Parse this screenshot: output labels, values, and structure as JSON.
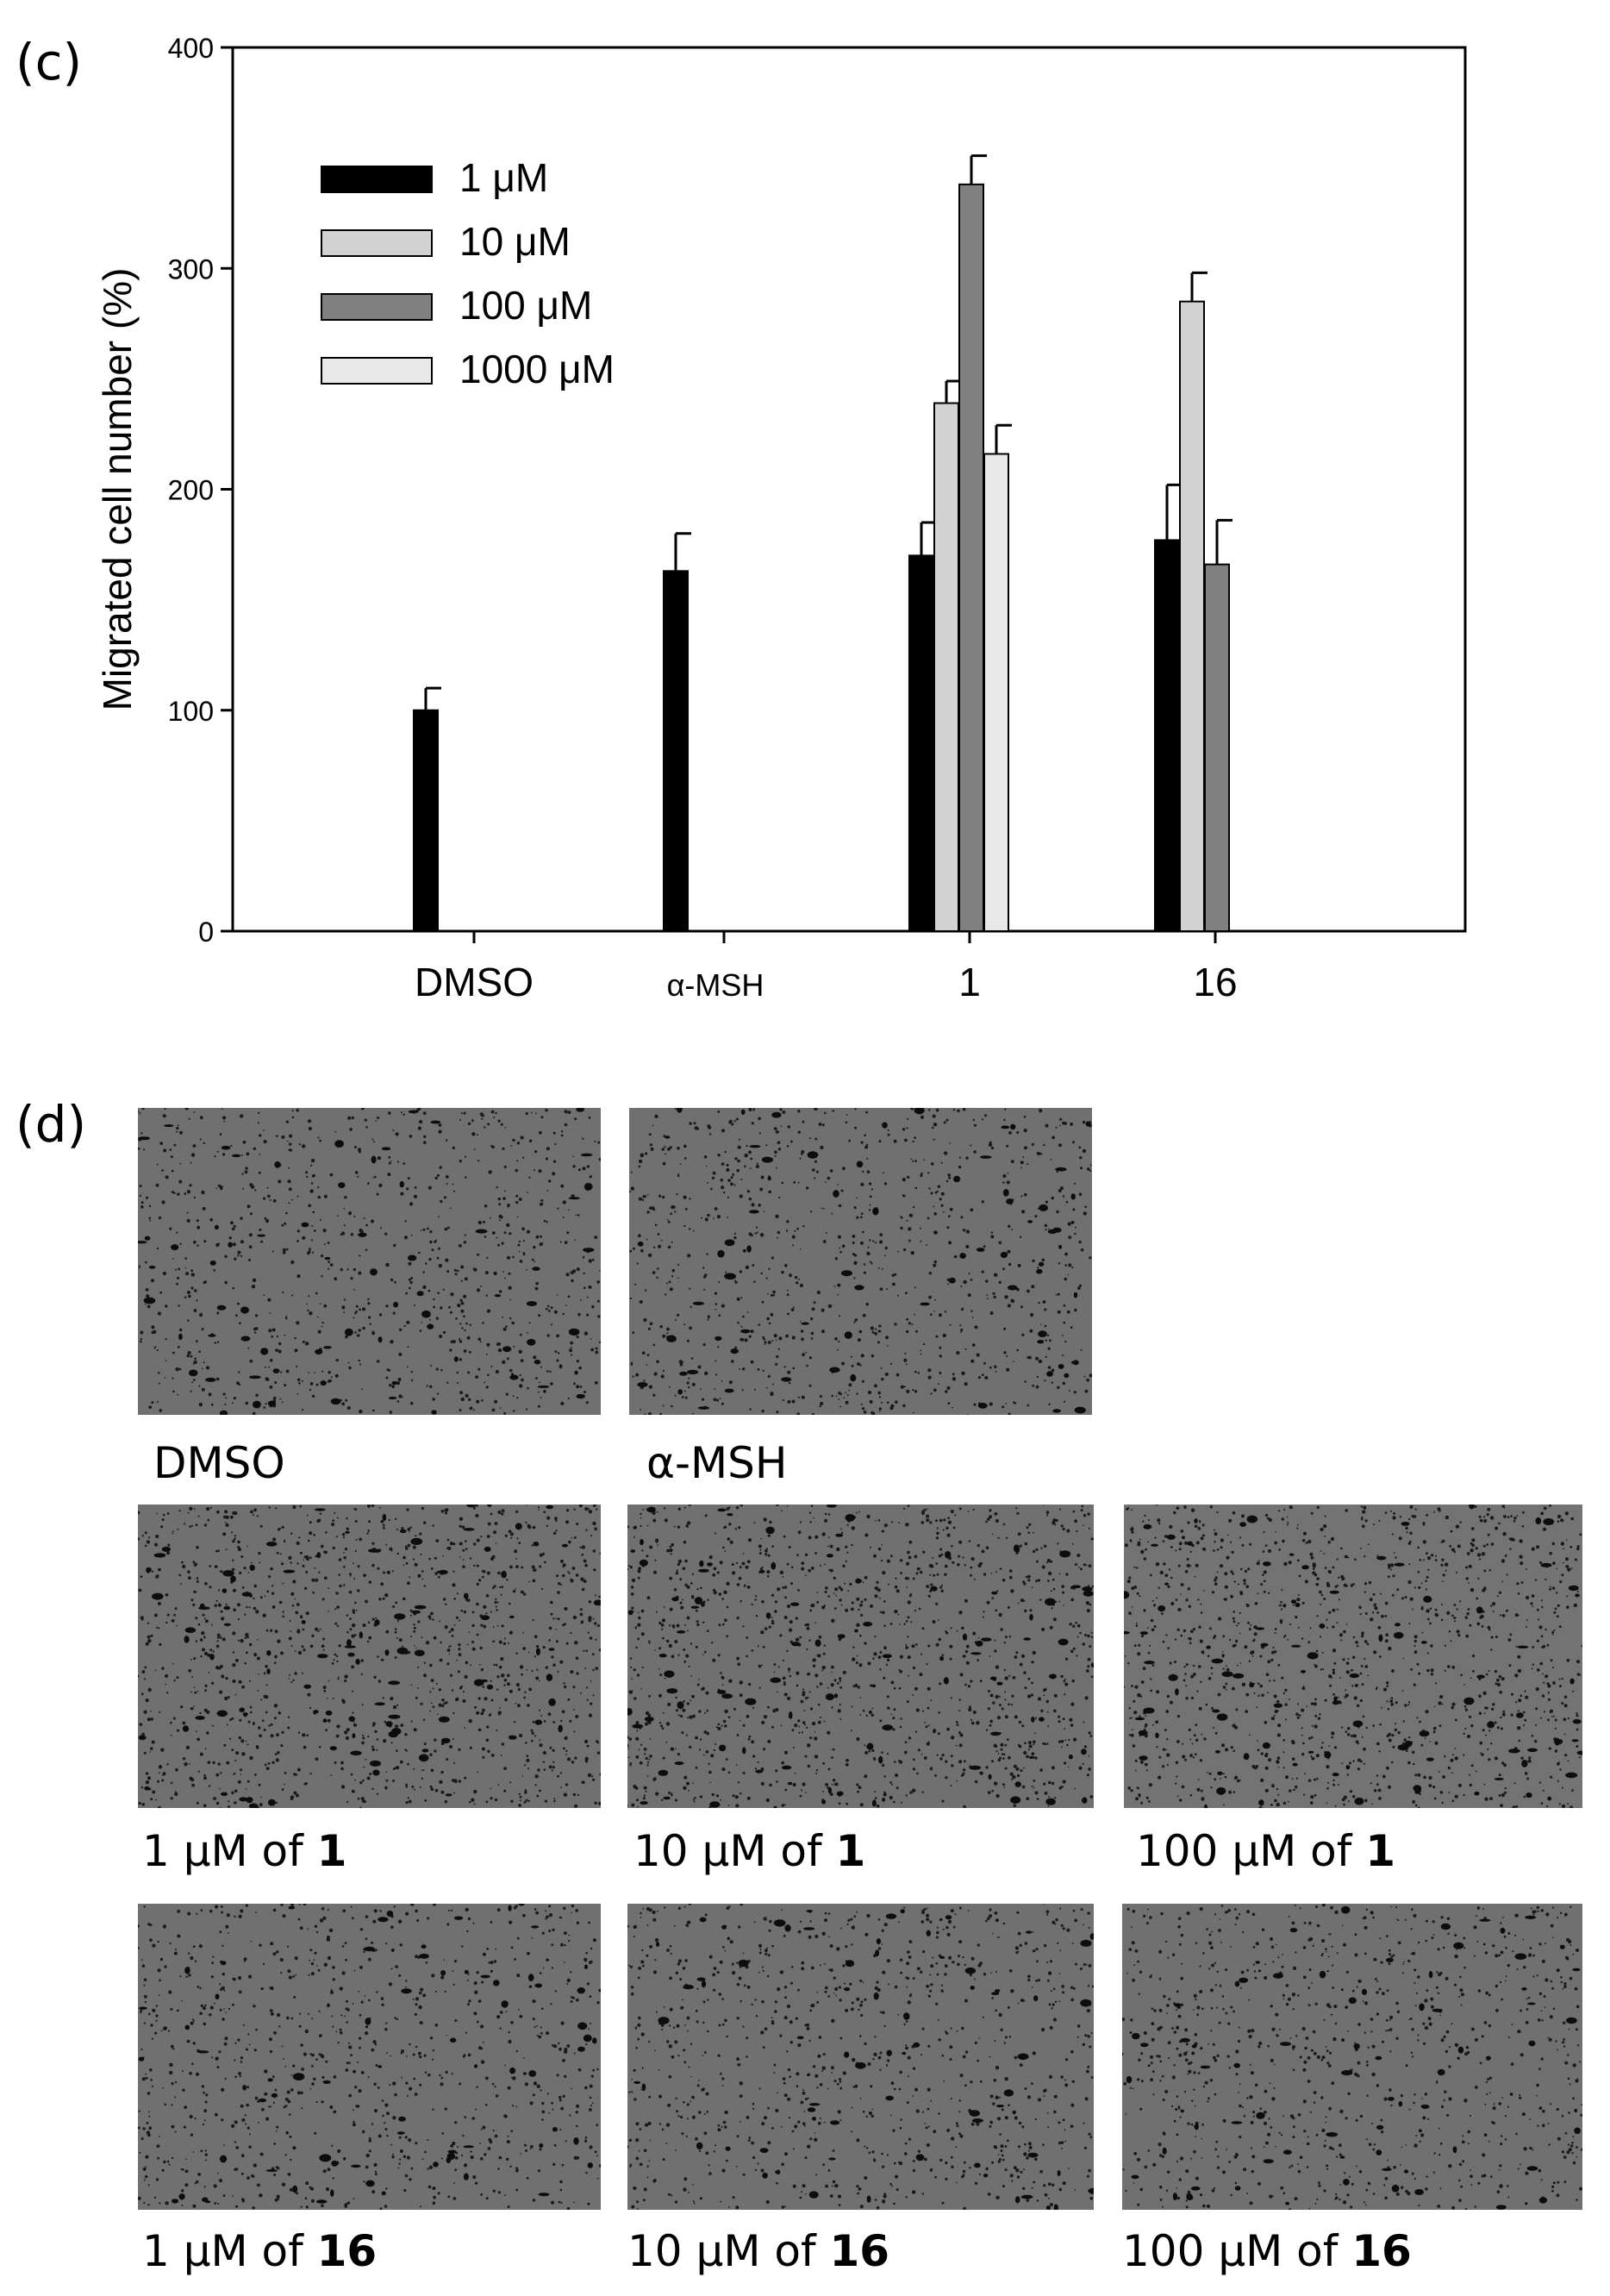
{
  "panels": {
    "c": "(c)",
    "d": "(d)"
  },
  "chart_data": {
    "type": "bar",
    "xlabel": "",
    "ylabel": "Migrated cell number (%)",
    "ylim": [
      0,
      400
    ],
    "yticks": [
      0,
      100,
      200,
      300,
      400
    ],
    "categories": [
      "DMSO",
      "α-MSH",
      "1",
      "16"
    ],
    "legend_position": "top-left",
    "series": [
      {
        "name": "1 μM",
        "color": "#000000",
        "values": [
          100,
          163,
          170,
          177
        ],
        "errors": [
          10,
          17,
          15,
          25
        ]
      },
      {
        "name": "10 μM",
        "color": "#d3d3d3",
        "values": [
          null,
          null,
          239,
          285
        ],
        "errors": [
          null,
          null,
          10,
          13
        ]
      },
      {
        "name": "100 μM",
        "color": "#808080",
        "values": [
          null,
          null,
          338,
          166
        ],
        "errors": [
          null,
          null,
          13,
          20
        ]
      },
      {
        "name": "1000 μM",
        "color": "#e8e8e8",
        "values": [
          null,
          null,
          216,
          null
        ],
        "errors": [
          null,
          null,
          13,
          null
        ]
      }
    ]
  },
  "images": [
    {
      "prefix": "DMSO",
      "bold": ""
    },
    {
      "prefix": "α-MSH",
      "bold": ""
    },
    {
      "prefix": "1 μM of ",
      "bold": "1"
    },
    {
      "prefix": "10 μM of ",
      "bold": "1"
    },
    {
      "prefix": "100 μM of ",
      "bold": "1"
    },
    {
      "prefix": "1 μM of ",
      "bold": "16"
    },
    {
      "prefix": "10 μM of ",
      "bold": "16"
    },
    {
      "prefix": "100 μM of ",
      "bold": "16"
    }
  ]
}
